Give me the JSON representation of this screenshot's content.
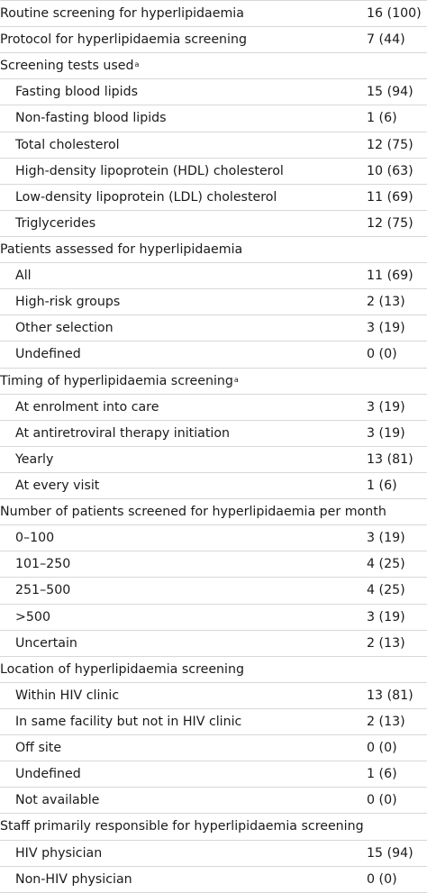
{
  "rows": [
    {
      "type": "header",
      "label": "Routine screening for hyperlipidaemia",
      "value": "16 (100)"
    },
    {
      "type": "header",
      "label": "Protocol for hyperlipidaemia screening",
      "value": "7 (44)"
    },
    {
      "type": "header",
      "label": "Screening tests used",
      "sup": "a",
      "value": ""
    },
    {
      "type": "item",
      "label": "Fasting blood lipids",
      "value": "15 (94)"
    },
    {
      "type": "item",
      "label": "Non-fasting blood lipids",
      "value": "1 (6)"
    },
    {
      "type": "item",
      "label": "Total cholesterol",
      "value": "12 (75)"
    },
    {
      "type": "item",
      "label": "High-density lipoprotein (HDL) cholesterol",
      "value": "10 (63)"
    },
    {
      "type": "item",
      "label": "Low-density lipoprotein (LDL) cholesterol",
      "value": "11 (69)"
    },
    {
      "type": "item",
      "label": "Triglycerides",
      "value": "12 (75)"
    },
    {
      "type": "header",
      "label": "Patients assessed for hyperlipidaemia",
      "value": ""
    },
    {
      "type": "item",
      "label": "All",
      "value": "11 (69)"
    },
    {
      "type": "item",
      "label": "High-risk groups",
      "value": "2 (13)"
    },
    {
      "type": "item",
      "label": "Other selection",
      "value": "3 (19)"
    },
    {
      "type": "item",
      "label": "Undefined",
      "value": "0 (0)"
    },
    {
      "type": "header",
      "label": "Timing of hyperlipidaemia screening",
      "sup": "a",
      "value": ""
    },
    {
      "type": "item",
      "label": "At enrolment into care",
      "value": "3 (19)"
    },
    {
      "type": "item",
      "label": "At antiretroviral therapy initiation",
      "value": "3 (19)"
    },
    {
      "type": "item",
      "label": "Yearly",
      "value": "13 (81)"
    },
    {
      "type": "item",
      "label": "At every visit",
      "value": "1 (6)"
    },
    {
      "type": "header",
      "label": "Number of patients screened for hyperlipidaemia per month",
      "value": ""
    },
    {
      "type": "item",
      "label": "0–100",
      "value": "3 (19)"
    },
    {
      "type": "item",
      "label": "101–250",
      "value": "4 (25)"
    },
    {
      "type": "item",
      "label": "251–500",
      "value": "4 (25)"
    },
    {
      "type": "item",
      "label": ">500",
      "value": "3 (19)"
    },
    {
      "type": "item",
      "label": "Uncertain",
      "value": "2 (13)"
    },
    {
      "type": "header",
      "label": "Location of hyperlipidaemia screening",
      "value": ""
    },
    {
      "type": "item",
      "label": "Within HIV clinic",
      "value": "13 (81)"
    },
    {
      "type": "item",
      "label": "In same facility but not in HIV clinic",
      "value": "2 (13)"
    },
    {
      "type": "item",
      "label": "Off site",
      "value": "0 (0)"
    },
    {
      "type": "item",
      "label": "Undefined",
      "value": "1 (6)"
    },
    {
      "type": "item",
      "label": "Not available",
      "value": "0 (0)"
    },
    {
      "type": "header",
      "label": "Staff primarily responsible for hyperlipidaemia screening",
      "value": ""
    },
    {
      "type": "item",
      "label": "HIV physician",
      "value": "15 (94)"
    },
    {
      "type": "item",
      "label": "Non-HIV physician",
      "value": "0 (0)"
    }
  ]
}
